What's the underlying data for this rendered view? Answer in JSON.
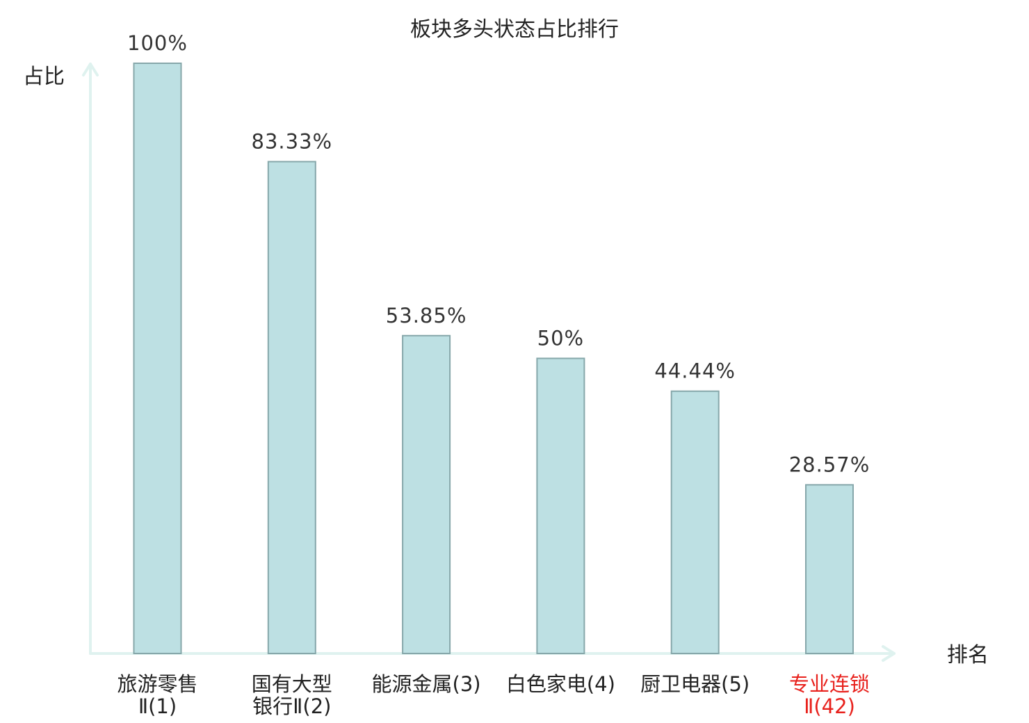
{
  "chart_data": {
    "type": "bar",
    "title": "板块多头状态占比排行",
    "ylabel": "占比",
    "xlabel": "排名",
    "ylim": [
      0,
      100
    ],
    "grid": false,
    "categories": [
      [
        "旅游零售",
        "Ⅱ(1)"
      ],
      [
        "国有大型",
        "银行Ⅱ(2)"
      ],
      [
        "能源金属(3)"
      ],
      [
        "白色家电(4)"
      ],
      [
        "厨卫电器(5)"
      ],
      [
        "专业连锁",
        "Ⅱ(42)"
      ]
    ],
    "values": [
      100,
      83.33,
      53.85,
      50,
      44.44,
      28.57
    ],
    "data_labels": [
      "100%",
      "83.33%",
      "53.85%",
      "50%",
      "44.44%",
      "28.57%"
    ],
    "highlight_index": 5
  },
  "colors": {
    "bar_fill": "#bde0e3",
    "bar_stroke": "#86a7aa",
    "axis": "#dff2ef",
    "text": "#222222",
    "highlight": "#e8211c"
  }
}
